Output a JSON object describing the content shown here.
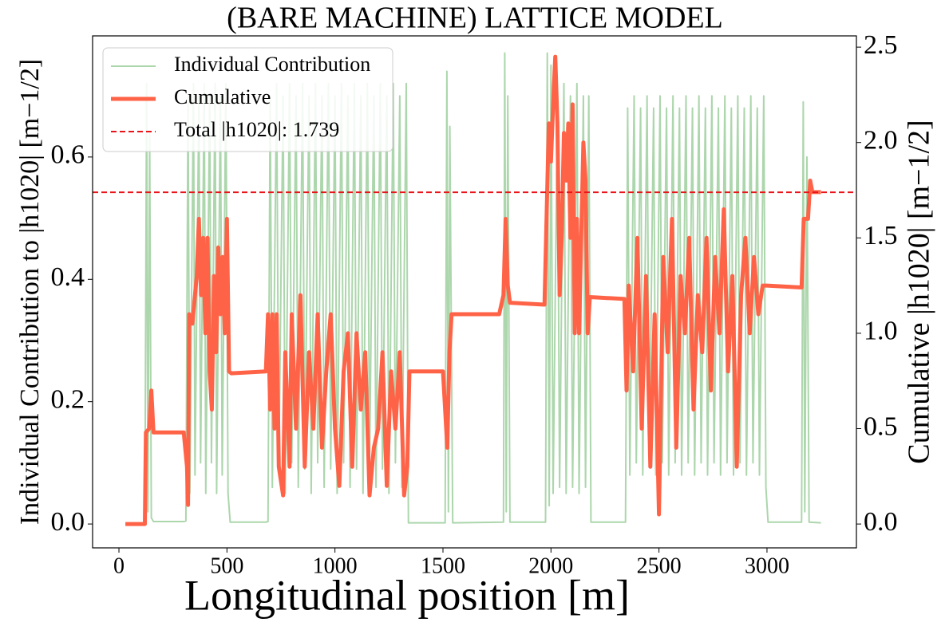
{
  "chart_data": {
    "type": "line",
    "title": "(BARE MACHINE) LATTICE MODEL",
    "x_label": "Longitudinal position [m]",
    "y_label": "Individual Contribution to |h1020| [m−1/2]",
    "y2_label": "Cumulative |h1020| [m−1/2]",
    "xlim": [
      -122,
      3414
    ],
    "ylim": [
      -0.039,
      0.798
    ],
    "y2lim": [
      -0.125,
      2.559
    ],
    "xticks": [
      0,
      500,
      1000,
      1500,
      2000,
      2500,
      3000
    ],
    "yticks": [
      {
        "value": 0,
        "label": "0.0"
      },
      0.2,
      0.4,
      0.6
    ],
    "y2ticks": [
      {
        "value": 0,
        "label": "0.0"
      },
      0.5,
      {
        "value": 1,
        "label": "1.0"
      },
      1.5,
      {
        "value": 2,
        "label": "2.0"
      },
      2.5
    ],
    "legend": "upper left",
    "series": [
      {
        "name": "Individual Contribution",
        "color": "#acd6ac",
        "axis": "y",
        "x": [
          30,
          120,
          128,
          134,
          142,
          150,
          160,
          300,
          310,
          320,
          328,
          345,
          352,
          370,
          378,
          395,
          402,
          420,
          428,
          445,
          452,
          470,
          478,
          495,
          505,
          515,
          680,
          690,
          700,
          710,
          730,
          740,
          760,
          770,
          790,
          800,
          820,
          830,
          850,
          860,
          880,
          890,
          910,
          920,
          940,
          950,
          970,
          980,
          1000,
          1010,
          1030,
          1040,
          1060,
          1070,
          1090,
          1100,
          1120,
          1130,
          1150,
          1160,
          1180,
          1190,
          1210,
          1220,
          1240,
          1250,
          1270,
          1280,
          1300,
          1310,
          1330,
          1340,
          1510,
          1518,
          1525,
          1532,
          1545,
          1780,
          1786,
          1793,
          1800,
          1810,
          1975,
          1983,
          1992,
          2000,
          2010,
          2030,
          2040,
          2060,
          2070,
          2090,
          2100,
          2120,
          2130,
          2150,
          2160,
          2175,
          2185,
          2345,
          2355,
          2365,
          2385,
          2395,
          2415,
          2425,
          2445,
          2455,
          2475,
          2485,
          2505,
          2515,
          2535,
          2545,
          2565,
          2575,
          2595,
          2605,
          2625,
          2635,
          2655,
          2665,
          2685,
          2695,
          2715,
          2725,
          2745,
          2755,
          2775,
          2785,
          2805,
          2815,
          2835,
          2845,
          2865,
          2875,
          2895,
          2905,
          2925,
          2935,
          2955,
          2965,
          2985,
          2995,
          3005,
          3160,
          3168,
          3175,
          3185,
          3195,
          3250
        ],
        "values": [
          0,
          0.002,
          0.72,
          0.02,
          0.64,
          0.01,
          0.004,
          0.004,
          0.005,
          0.7,
          0.05,
          0.72,
          0.08,
          0.7,
          0.1,
          0.72,
          0.05,
          0.7,
          0.1,
          0.72,
          0.05,
          0.7,
          0.08,
          0.72,
          0.05,
          0.003,
          0.003,
          0.004,
          0.7,
          0.06,
          0.72,
          0.09,
          0.7,
          0.05,
          0.72,
          0.1,
          0.7,
          0.06,
          0.72,
          0.09,
          0.7,
          0.05,
          0.72,
          0.1,
          0.7,
          0.06,
          0.72,
          0.09,
          0.7,
          0.05,
          0.72,
          0.1,
          0.7,
          0.06,
          0.72,
          0.09,
          0.7,
          0.05,
          0.72,
          0.1,
          0.7,
          0.06,
          0.72,
          0.09,
          0.7,
          0.05,
          0.72,
          0.1,
          0.7,
          0.06,
          0.72,
          0.002,
          0.002,
          0.74,
          0.02,
          0.65,
          0.002,
          0.003,
          0.77,
          0.02,
          0.7,
          0.003,
          0.003,
          0.77,
          0.03,
          0.75,
          0.05,
          0.7,
          0.06,
          0.72,
          0.05,
          0.7,
          0.06,
          0.72,
          0.05,
          0.7,
          0.06,
          0.7,
          0.003,
          0.003,
          0.68,
          0.08,
          0.7,
          0.1,
          0.68,
          0.08,
          0.7,
          0.1,
          0.68,
          0.08,
          0.7,
          0.1,
          0.68,
          0.08,
          0.7,
          0.1,
          0.68,
          0.08,
          0.7,
          0.1,
          0.68,
          0.08,
          0.7,
          0.1,
          0.68,
          0.08,
          0.7,
          0.1,
          0.68,
          0.08,
          0.7,
          0.1,
          0.68,
          0.08,
          0.7,
          0.1,
          0.68,
          0.08,
          0.7,
          0.1,
          0.68,
          0.08,
          0.7,
          0.06,
          0.003,
          0.003,
          0.69,
          0.02,
          0.6,
          0.003,
          0.002
        ]
      },
      {
        "name": "Cumulative",
        "color": "#ff6347",
        "axis": "y2",
        "x": [
          30,
          120,
          125,
          140,
          150,
          160,
          300,
          315,
          320,
          325,
          340,
          360,
          370,
          380,
          390,
          400,
          410,
          420,
          430,
          440,
          450,
          460,
          470,
          480,
          490,
          500,
          510,
          520,
          680,
          690,
          700,
          710,
          720,
          730,
          740,
          760,
          770,
          790,
          800,
          820,
          840,
          860,
          880,
          900,
          920,
          940,
          960,
          980,
          1000,
          1020,
          1040,
          1060,
          1080,
          1100,
          1120,
          1140,
          1160,
          1180,
          1200,
          1220,
          1240,
          1260,
          1280,
          1300,
          1320,
          1335,
          1345,
          1500,
          1510,
          1520,
          1530,
          1540,
          1545,
          1760,
          1780,
          1790,
          1800,
          1810,
          1970,
          1990,
          2000,
          2010,
          2020,
          2030,
          2040,
          2050,
          2060,
          2070,
          2080,
          2090,
          2100,
          2110,
          2120,
          2130,
          2140,
          2150,
          2160,
          2170,
          2180,
          2340,
          2350,
          2360,
          2380,
          2400,
          2420,
          2440,
          2460,
          2480,
          2500,
          2520,
          2540,
          2560,
          2580,
          2600,
          2620,
          2640,
          2660,
          2680,
          2700,
          2720,
          2740,
          2760,
          2780,
          2800,
          2820,
          2840,
          2860,
          2880,
          2900,
          2920,
          2940,
          2960,
          2980,
          3000,
          3160,
          3170,
          3190,
          3200,
          3210,
          3250
        ],
        "values": [
          0,
          0,
          0.48,
          0.5,
          0.7,
          0.48,
          0.48,
          0.3,
          0.1,
          1.1,
          1.05,
          1.3,
          1.6,
          1.2,
          1.5,
          1.0,
          1.5,
          0.8,
          0.6,
          1.3,
          0.9,
          1.45,
          1.1,
          1.4,
          1.0,
          1.6,
          0.8,
          0.79,
          0.8,
          1.1,
          0.6,
          1.1,
          0.5,
          1.1,
          0.3,
          0.15,
          0.9,
          0.3,
          1.1,
          0.5,
          1.2,
          0.3,
          0.9,
          0.5,
          1.1,
          0.4,
          0.8,
          1.1,
          0.5,
          0.2,
          0.8,
          1.0,
          0.3,
          1.0,
          0.6,
          0.9,
          0.15,
          0.4,
          0.5,
          0.9,
          0.2,
          0.8,
          0.5,
          0.9,
          0.15,
          0.3,
          0.8,
          0.8,
          0.6,
          0.4,
          0.9,
          1.1,
          1.1,
          1.1,
          1.2,
          1.6,
          1.25,
          1.16,
          1.15,
          2.1,
          1.9,
          2.2,
          2.45,
          2.1,
          1.2,
          1.5,
          2.05,
          1.8,
          2.1,
          1.5,
          2.2,
          1.0,
          1.6,
          1.0,
          1.5,
          2.0,
          1.8,
          1.0,
          1.19,
          1.18,
          0.7,
          1.25,
          0.8,
          1.5,
          0.5,
          1.3,
          0.3,
          1.1,
          0.05,
          1.4,
          0.9,
          1.6,
          0.4,
          1.3,
          1.0,
          1.5,
          0.6,
          1.2,
          0.9,
          1.5,
          0.7,
          1.4,
          1.0,
          1.65,
          0.8,
          1.3,
          0.3,
          1.2,
          1.5,
          1.0,
          1.4,
          1.1,
          1.25,
          1.25,
          1.24,
          1.6,
          1.6,
          1.8,
          1.74,
          1.74
        ]
      }
    ],
    "total_line": {
      "value": 1.739,
      "axis": "y2",
      "color": "#e8141a",
      "label": "Total |h1020|: 1.739"
    }
  }
}
